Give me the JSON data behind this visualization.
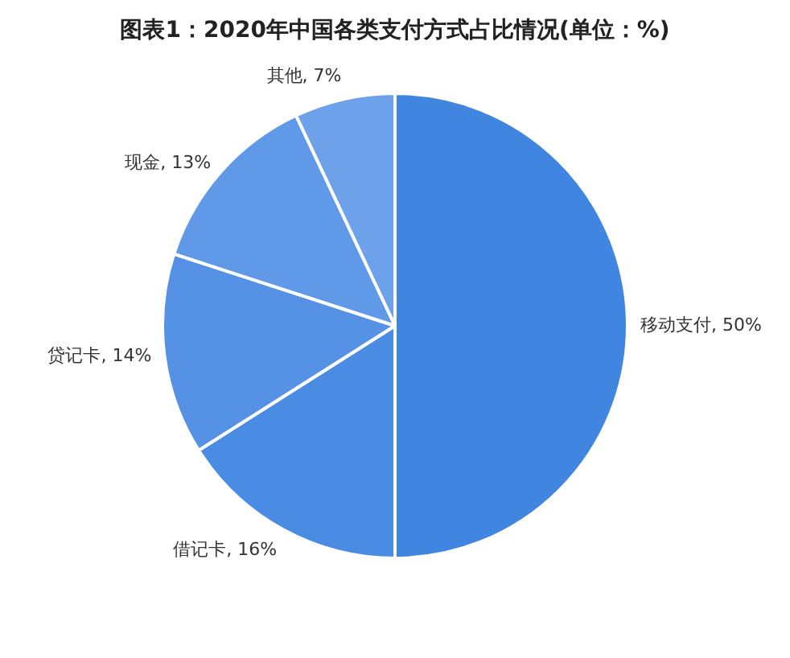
{
  "chart_data": {
    "type": "pie",
    "title": "图表1：2020年中国各类支付方式占比情况(单位：%)",
    "categories": [
      "移动支付",
      "借记卡",
      "贷记卡",
      "现金",
      "其他"
    ],
    "values": [
      50,
      16,
      14,
      13,
      7
    ],
    "value_labels": [
      "50%",
      "16%",
      "14%",
      "13%",
      "7%"
    ],
    "colors": [
      "#4086e0",
      "#4a8ce3",
      "#5592e5",
      "#5f99e7",
      "#6da2ea"
    ],
    "legend": false
  }
}
